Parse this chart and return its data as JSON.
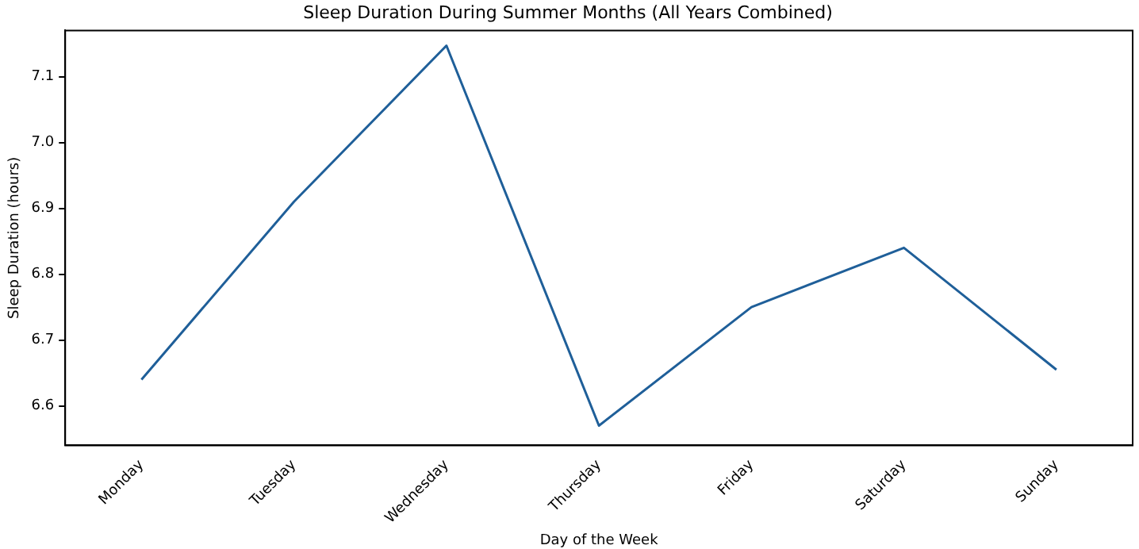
{
  "chart_data": {
    "type": "line",
    "title": "Sleep Duration During Summer Months (All Years Combined)",
    "xlabel": "Day of the Week",
    "ylabel": "Sleep Duration (hours)",
    "categories": [
      "Monday",
      "Tuesday",
      "Wednesday",
      "Thursday",
      "Friday",
      "Saturday",
      "Sunday"
    ],
    "series": [
      {
        "color": "#1f5f99",
        "values": [
          6.64,
          6.91,
          7.147,
          6.57,
          6.75,
          6.84,
          6.655
        ]
      }
    ],
    "ylim": [
      6.54,
      7.17
    ],
    "yticks": [
      {
        "value": 6.6,
        "label": "6.6"
      },
      {
        "value": 6.7,
        "label": "6.7"
      },
      {
        "value": 6.8,
        "label": "6.8"
      },
      {
        "value": 6.9,
        "label": "6.9"
      },
      {
        "value": 7.0,
        "label": "7.0"
      },
      {
        "value": 7.1,
        "label": "7.1"
      }
    ],
    "grid": false,
    "legend": false,
    "marker": "none",
    "line_style": "solid"
  }
}
